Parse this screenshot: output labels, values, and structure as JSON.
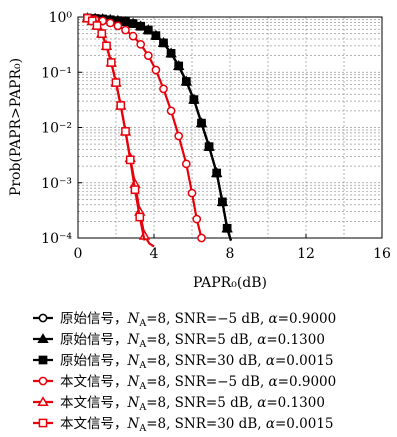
{
  "chart_data": {
    "type": "line",
    "xlabel": "PAPR₀(dB)",
    "ylabel": "Prob(PAPR>PAPR₀)",
    "xlim": [
      0,
      16
    ],
    "ylim": [
      0.0001,
      1
    ],
    "yscale": "log",
    "grid": true,
    "legend_position": "below",
    "x_ticks": [
      "0",
      "4",
      "8",
      "12",
      "16"
    ],
    "y_ticks": [
      "10⁰",
      "10⁻¹",
      "10⁻²",
      "10⁻³",
      "10⁻⁴"
    ],
    "series": [
      {
        "name": "原始信号，N_A=8, SNR=−5 dB, α=0.9000",
        "color": "#000000",
        "marker": "circle",
        "x": [
          0.5,
          0.9,
          1.3,
          1.7,
          2.1,
          2.5,
          2.9,
          3.3,
          3.7,
          4.1,
          4.5,
          4.9,
          5.3,
          5.7,
          6.1,
          6.5,
          6.9,
          7.3,
          7.6,
          7.85,
          8.05
        ],
        "y": [
          0.96,
          0.94,
          0.92,
          0.89,
          0.86,
          0.82,
          0.76,
          0.68,
          0.58,
          0.46,
          0.34,
          0.22,
          0.13,
          0.068,
          0.032,
          0.012,
          0.0045,
          0.0015,
          0.00045,
          0.00015,
          9e-05
        ]
      },
      {
        "name": "原始信号，N_A=8, SNR=5 dB, α=0.1300",
        "color": "#000000",
        "marker": "triangle",
        "x": [
          0.5,
          0.9,
          1.3,
          1.7,
          2.1,
          2.5,
          2.9,
          3.3,
          3.7,
          4.1,
          4.5,
          4.9,
          5.3,
          5.7,
          6.1,
          6.5,
          6.9,
          7.3,
          7.6,
          7.85,
          8.05
        ],
        "y": [
          0.96,
          0.94,
          0.92,
          0.89,
          0.86,
          0.82,
          0.76,
          0.68,
          0.58,
          0.46,
          0.34,
          0.22,
          0.13,
          0.068,
          0.032,
          0.012,
          0.0045,
          0.0015,
          0.00045,
          0.00015,
          9e-05
        ]
      },
      {
        "name": "原始信号，N_A=8, SNR=30 dB, α=0.0015",
        "color": "#000000",
        "marker": "square",
        "x": [
          0.5,
          0.9,
          1.3,
          1.7,
          2.1,
          2.5,
          2.9,
          3.3,
          3.7,
          4.1,
          4.5,
          4.9,
          5.3,
          5.7,
          6.1,
          6.5,
          6.9,
          7.3,
          7.6,
          7.85,
          8.05
        ],
        "y": [
          0.96,
          0.94,
          0.92,
          0.89,
          0.86,
          0.82,
          0.76,
          0.68,
          0.58,
          0.46,
          0.34,
          0.22,
          0.13,
          0.068,
          0.032,
          0.012,
          0.0045,
          0.0015,
          0.00045,
          0.00015,
          9e-05
        ]
      },
      {
        "name": "本文信号，N_A=8, SNR=−5 dB, α=0.9000",
        "color": "#e8000b",
        "marker": "circle",
        "x": [
          0.5,
          0.9,
          1.3,
          1.7,
          2.1,
          2.5,
          2.9,
          3.3,
          3.7,
          4.1,
          4.5,
          4.9,
          5.3,
          5.7,
          6.0,
          6.25,
          6.5
        ],
        "y": [
          0.95,
          0.9,
          0.85,
          0.78,
          0.69,
          0.58,
          0.45,
          0.32,
          0.2,
          0.11,
          0.05,
          0.02,
          0.007,
          0.0022,
          0.00065,
          0.00022,
          0.0001
        ]
      },
      {
        "name": "本文信号，N_A=8, SNR=5 dB, α=0.1300",
        "color": "#e8000b",
        "marker": "triangle",
        "x": [
          0.5,
          0.75,
          1.0,
          1.25,
          1.5,
          1.75,
          2.0,
          2.25,
          2.5,
          2.75,
          3.0,
          3.25,
          3.5,
          3.75,
          4.0
        ],
        "y": [
          0.95,
          0.85,
          0.7,
          0.5,
          0.3,
          0.15,
          0.065,
          0.025,
          0.0085,
          0.0028,
          0.00095,
          0.0003,
          0.00011,
          8e-05,
          7e-05
        ]
      },
      {
        "name": "本文信号，N_A=8, SNR=30 dB, α=0.0015",
        "color": "#e8000b",
        "marker": "square",
        "x": [
          0.5,
          0.75,
          1.0,
          1.25,
          1.5,
          1.75,
          2.0,
          2.25,
          2.5,
          2.75,
          3.0,
          3.25,
          3.5
        ],
        "y": [
          0.95,
          0.85,
          0.7,
          0.5,
          0.3,
          0.15,
          0.065,
          0.025,
          0.0085,
          0.0026,
          0.00075,
          0.00024,
          9e-05
        ]
      }
    ],
    "legend": [
      {
        "prefix": "原始信号，",
        "snr": "8, SNR=−5 dB, ",
        "alpha": "=0.9000"
      },
      {
        "prefix": "原始信号，",
        "snr": "8, SNR=5 dB, ",
        "alpha": "=0.1300"
      },
      {
        "prefix": "原始信号，",
        "snr": "8, SNR=30 dB, ",
        "alpha": "=0.0015"
      },
      {
        "prefix": "本文信号，",
        "snr": "8, SNR=−5 dB, ",
        "alpha": "=0.9000"
      },
      {
        "prefix": "本文信号，",
        "snr": "8, SNR=5 dB, ",
        "alpha": "=0.1300"
      },
      {
        "prefix": "本文信号，",
        "snr": "8, SNR=30 dB, ",
        "alpha": "=0.0015"
      }
    ]
  }
}
